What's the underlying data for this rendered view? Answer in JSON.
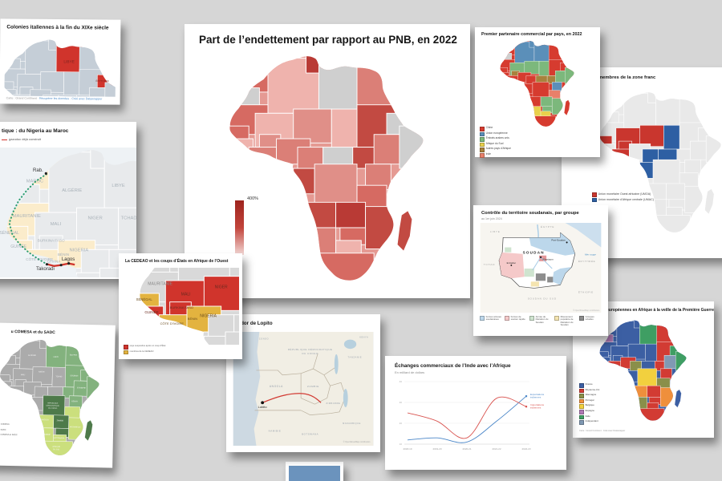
{
  "canvas": {
    "background": "#d6d6d6"
  },
  "cards": {
    "colonies": {
      "title": "Colonies italiennes à la fin du XIXe siècle",
      "footer_parts": [
        "Carte : Grand Continent ·",
        "Récupérer les données",
        "· Créé avec Datawrapper"
      ],
      "map": {
        "base": "#c5ced7",
        "stroke": "#ffffff",
        "regions": {
          "libya": "#d0342c",
          "eritrea": "#d0342c"
        },
        "labels": [
          "LIBYE",
          "ÉRYTHRÉE"
        ]
      }
    },
    "gazoduc": {
      "title_visible": "tique : du Nigeria au Maroc",
      "legend": [
        {
          "color": "#d0342c",
          "label": "gazoduc déjà construit"
        }
      ],
      "map": {
        "ocean": "#eef2f5",
        "base": "#e8eaec",
        "stroke": "#ffffff",
        "regions": {
          "morocco": "#fbeccb",
          "mauritania": "#fbeccb",
          "senegal": "#fbeccb",
          "guinea": "#fbeccb",
          "cote_ghana": "#fbeccb",
          "benin_nigeria": "#fbeccb"
        },
        "labels": [
          "MAROC",
          "ALGÉRIE",
          "LIBYE",
          "MAURITANIE",
          "MALI",
          "NIGER",
          "TCHAD",
          "SÉNÉGAL",
          "GUINÉE",
          "BURKINA FASO",
          "CÔTE D'IVOIRE",
          "GHANA",
          "BÉNIN",
          "NIGERIA"
        ],
        "cities": [
          "Rab.",
          "Takoradi",
          "Lagos"
        ],
        "route_built_color": "#d0342c",
        "route_planned_color": "#2e9e72"
      }
    },
    "endettement": {
      "title": "Part de l’endettement par rapport au PNB, en 2022",
      "legend_max": "400%",
      "map": {
        "base": "#e59a93",
        "stroke": "#ffffff",
        "nodata": "#cfcfcf",
        "regions": {
          "morocco": "#d66a62",
          "w_sahara": "#cfcfcf",
          "algeria": "#efb3ad",
          "tunisia": "#b93a35",
          "libya": "#cfcfcf",
          "egypt": "#db7f77",
          "mauritania": "#d66a62",
          "mali": "#efb3ad",
          "niger": "#e08f88",
          "chad": "#efb3ad",
          "sudan": "#c24a42",
          "eritrea": "#cfcfcf",
          "senegal": "#d66a62",
          "guinea": "#efb3ad",
          "burkina": "#e08f88",
          "cote_ghana": "#db7f77",
          "benin_nigeria": "#db7f77",
          "cameroon": "#db7f77",
          "car": "#cfcfcf",
          "south_sudan": "#c24a42",
          "ethiopia": "#db7f77",
          "somalia": "#cfcfcf",
          "kenya": "#db7f77",
          "gabon_congo": "#c24a42",
          "drc": "#e08f88",
          "tanzania": "#d66a62",
          "angola": "#c24a42",
          "zambia": "#b93a35",
          "mozambique": "#c24a42",
          "zimbabwe": "#d66a62",
          "namibia": "#db7f77",
          "botswana": "#efb3ad",
          "south_africa": "#d66a62",
          "madagascar": "#c24a42"
        },
        "labels": []
      }
    },
    "partenaire": {
      "title": "Premier partenaire commercial par pays, en 2022",
      "legend": [
        {
          "color": "#d63b2f",
          "label": "Chine"
        },
        {
          "color": "#5b8fb9",
          "label": "Union européenne"
        },
        {
          "color": "#7cb87c",
          "label": "Émirats arabes unis"
        },
        {
          "color": "#e9d04c",
          "label": "Afrique du Sud"
        },
        {
          "color": "#a8823d",
          "label": "Autres pays d’Afrique"
        },
        {
          "color": "#e8806a",
          "label": "Inde"
        }
      ],
      "map": {
        "base": "#d63b2f",
        "stroke": "#ffffff",
        "regions": {
          "algeria": "#5b8fb9",
          "libya": "#5b8fb9",
          "tunisia": "#5b8fb9",
          "w_sahara": "#cfcfcf",
          "mali": "#7cb87c",
          "niger": "#7cb87c",
          "chad": "#7cb87c",
          "burkina": "#a8823d",
          "car": "#a8823d",
          "south_sudan": "#a8823d",
          "ethiopia": "#7cb87c",
          "somalia": "#7cb87c",
          "kenya": "#5b8fb9",
          "tanzania": "#e8806a",
          "zambia": "#7cb87c",
          "zimbabwe": "#7cb87c",
          "mozambique": "#7cb87c",
          "namibia": "#e9d04c",
          "botswana": "#e9d04c"
        },
        "labels": []
      }
    },
    "zone_franc": {
      "title_visible": "membres de la zone franc",
      "legend": [
        {
          "color": "#c9362e",
          "label": "Union monétaire Ouest africaine (UMOA)"
        },
        {
          "color": "#2e5fa3",
          "label": "Union monétaire d’Afrique centrale (UMAC)"
        }
      ],
      "map": {
        "base": "#e9e9e9",
        "stroke": "#ffffff",
        "regions": {
          "senegal": "#c9362e",
          "mali": "#c9362e",
          "burkina": "#c9362e",
          "niger": "#c9362e",
          "cote_ghana": "#c9362e",
          "chad": "#2e5fa3",
          "cameroon": "#2e5fa3",
          "car": "#2e5fa3",
          "gabon_congo": "#2e5fa3"
        },
        "labels": []
      }
    },
    "soudan": {
      "title": "Contrôle du territoire soudanais, par groupe",
      "subtitle": "au 1er juin 2024",
      "country": "SOUDAN",
      "sea": "Mer rouge",
      "neighbors": [
        "LIBYE",
        "ÉGYPTE",
        "TCHAD",
        "ÉRYTHRÉE",
        "ÉTHIOPIE",
        "SOUDAN DU SUD"
      ],
      "cities": [
        "Port-Soudan",
        "Khartoum",
        "El-Fasher"
      ],
      "attribution": "© OpenStreetMap contributors",
      "legend": [
        {
          "color": "#bcd7eb",
          "label": "Forces armées soudanaises"
        },
        {
          "color": "#f5c9c9",
          "label": "Forces de soutien rapide"
        },
        {
          "color": "#cfe4cf",
          "label": "Armée de libération du Soudan"
        },
        {
          "color": "#f4e4b0",
          "label": "Mouvement populaire de libération du Soudan"
        },
        {
          "color": "#8d8d8d",
          "label": "Groupes rebelles"
        }
      ]
    },
    "colonial": {
      "title_visible": "européennes en Afrique à la veille de la Première Guerre",
      "source": "Carte : Grand Continent · Créé avec Datawrapper",
      "legend": [
        {
          "color": "#3c5fa3",
          "label": "France"
        },
        {
          "color": "#d23b33",
          "label": "Royaume-Uni"
        },
        {
          "color": "#8a8f4a",
          "label": "Allemagne"
        },
        {
          "color": "#ef8f3c",
          "label": "Portugal"
        },
        {
          "color": "#f2d03e",
          "label": "Belgique"
        },
        {
          "color": "#b07ab5",
          "label": "Espagne"
        },
        {
          "color": "#3f9e63",
          "label": "Italie"
        },
        {
          "color": "#8099b3",
          "label": "Indépendant"
        }
      ],
      "map": {
        "base": "#3c5fa3",
        "stroke": "#ffffff",
        "regions": {
          "egypt": "#d23b33",
          "sudan": "#d23b33",
          "south_sudan": "#d23b33",
          "benin_nigeria": "#d23b33",
          "cote_ghana": "#d23b33",
          "kenya": "#d23b33",
          "zambia": "#d23b33",
          "zimbabwe": "#d23b33",
          "botswana": "#d23b33",
          "south_africa": "#d23b33",
          "somalia": "#3f9e63",
          "libya": "#3f9e63",
          "eritrea": "#3f9e63",
          "ethiopia": "#8099b3",
          "tanzania": "#8a8f4a",
          "namibia": "#8a8f4a",
          "cameroon": "#8a8f4a",
          "drc": "#f2d03e",
          "angola": "#ef8f3c",
          "mozambique": "#ef8f3c",
          "w_sahara": "#b07ab5"
        },
        "labels": []
      }
    },
    "cedeao": {
      "title": "La CEDEAO et les coups d’États en Afrique de l’Ouest",
      "legend": [
        {
          "color": "#d0342c",
          "label": "pays suspendus après un coup d’État"
        },
        {
          "color": "#e3b33f",
          "label": "membres de la CEDEAO"
        }
      ],
      "map": {
        "base": "#d9d9d9",
        "stroke": "#ffffff",
        "regions": {
          "mali": "#d0342c",
          "niger": "#d0342c",
          "burkina": "#d0342c",
          "guinea": "#d0342c",
          "senegal": "#e3b33f",
          "cote_ghana": "#e3b33f",
          "benin_nigeria": "#e3b33f"
        },
        "labels": [
          "MAURITANIE",
          "MALI",
          "NIGER",
          "BURKINA FASO",
          "GUINÉE",
          "SÉNÉGAL",
          "CÔTE D'IVOIRE",
          "BÉNIN",
          "NIGERIA"
        ]
      }
    },
    "lobito": {
      "title_visible": "ridor de Lopito",
      "city": "Lobito",
      "labels": [
        "RÉPUBLIQUE DÉMOCRATIQUE",
        "DU CONGO",
        "ANGOLA",
        "ZAMBIE",
        "TANZANIE",
        "KENYA",
        "CONGO",
        "ZIMBABWE",
        "MOZAMBIQUE",
        "NAMIBIE",
        "BOTSWANA"
      ],
      "attribution": "© OpenStreetMap contributors",
      "route_color": "#d23b33"
    },
    "comesa": {
      "title_visible": "u COMESA et du SADC",
      "legend": [
        {
          "color": "#83b27e",
          "label": "COMESA"
        },
        {
          "color": "#cbdf7d",
          "label": "SADC"
        },
        {
          "color": "#4e7a4a",
          "label": "COMESA et SADC"
        }
      ],
      "map": {
        "base": "#ababab",
        "stroke": "#ffffff",
        "regions": {
          "libya": "#83b27e",
          "egypt": "#83b27e",
          "sudan": "#83b27e",
          "eritrea": "#83b27e",
          "ethiopia": "#83b27e",
          "somalia": "#83b27e",
          "kenya": "#83b27e",
          "south_sudan": "#83b27e",
          "drc": "#4e7a4a",
          "zambia": "#4e7a4a",
          "zimbabwe": "#4e7a4a",
          "madagascar": "#4e7a4a",
          "angola": "#cbdf7d",
          "namibia": "#cbdf7d",
          "botswana": "#cbdf7d",
          "south_africa": "#cbdf7d",
          "mozambique": "#cbdf7d",
          "tanzania": "#cbdf7d"
        },
        "labels": [
          "ALGÉRIE",
          "LIBYE",
          "ÉGYPTE",
          "MALI",
          "NIGER",
          "TCHAD",
          "SOUDAN",
          "ÉTHIOPIE",
          "KENYA",
          "ZAMBIE",
          "ANGOLA",
          "NAMIBIE",
          "BOTSWANA",
          "MOZAMBIQUE",
          "RÉPUBLIQUE",
          "DÉMOCRATIQUE",
          "DU CONGO",
          "AFRIQUE",
          "DU SUD"
        ]
      }
    },
    "peek": {
      "ocean_color": "#6b93bd"
    }
  },
  "chart_data": {
    "type": "line",
    "title": "Échanges commerciaux de l’Inde avec l’Afrique",
    "subtitle": "En milliard de dollars",
    "categories": [
      "2018-19",
      "2019-20",
      "2020-21",
      "2021-22",
      "2022-23"
    ],
    "series": [
      {
        "name": "Exportations indiennes",
        "color": "#4a86c8",
        "values": [
          12,
          13,
          11,
          21,
          33
        ]
      },
      {
        "name": "Importations indiennes",
        "color": "#d9534f",
        "values": [
          25,
          21,
          13,
          32,
          28
        ]
      }
    ],
    "ylim": [
      10,
      40
    ],
    "yticks": [
      10,
      20,
      30,
      40
    ],
    "grid": true,
    "legend_position": "end-of-line"
  }
}
